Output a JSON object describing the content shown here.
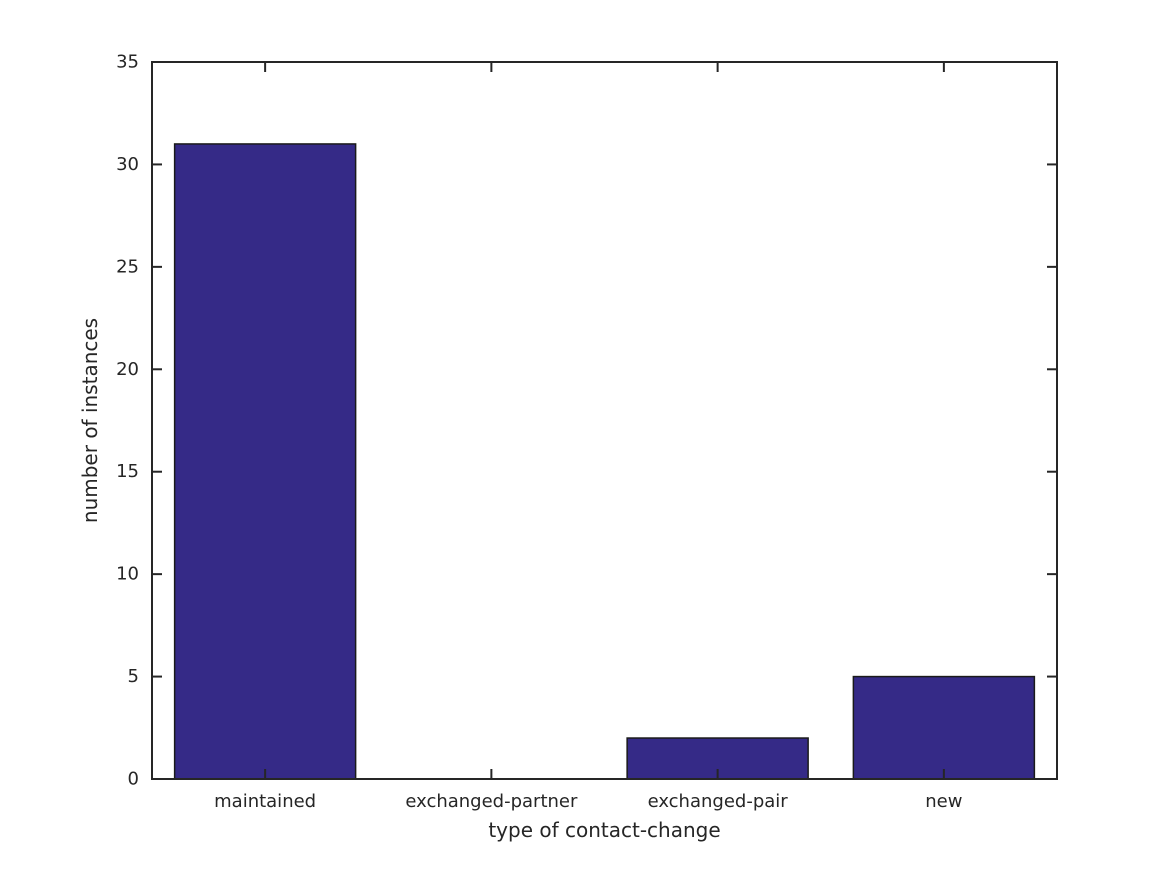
{
  "figure": {
    "background": "#ffffff"
  },
  "chart_data": {
    "type": "bar",
    "title": "",
    "xlabel": "type of contact-change",
    "ylabel": "number of instances",
    "categories": [
      "maintained",
      "exchanged-partner",
      "exchanged-pair",
      "new"
    ],
    "values": [
      31,
      0,
      2,
      5
    ],
    "ylim": [
      0,
      35
    ],
    "yticks": [
      0,
      5,
      10,
      15,
      20,
      25,
      30,
      35
    ],
    "grid": false,
    "legend": null,
    "tick_direction": "in",
    "bar_width_fraction": 0.8,
    "colors": {
      "bar_fill": "#352A87",
      "bar_edge": "#1a1a1a",
      "axis": "#262626",
      "text": "#262626"
    },
    "font_sizes": {
      "tick_label": 18,
      "axis_label": 20
    }
  }
}
